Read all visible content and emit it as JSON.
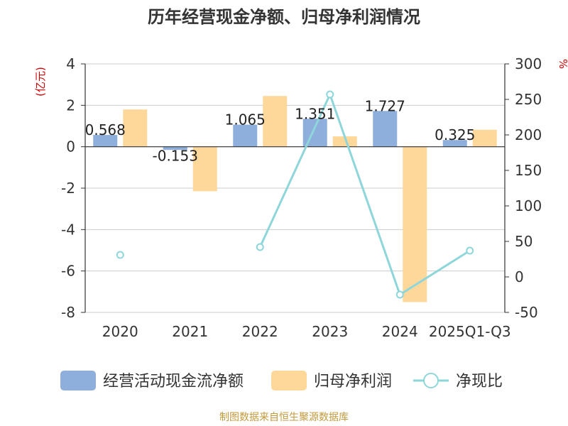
{
  "chart_data": {
    "type": "bar+line",
    "title": "历年经营现金净额、归母净利润情况",
    "left_axis_unit": "(亿元)",
    "right_axis_unit": "%",
    "categories": [
      "2020",
      "2021",
      "2022",
      "2023",
      "2024",
      "2025Q1-Q3"
    ],
    "left_ylim": [
      -8,
      4
    ],
    "left_ticks": [
      4,
      2,
      0,
      -2,
      -4,
      -6,
      -8
    ],
    "right_ylim": [
      -50,
      300
    ],
    "right_ticks": [
      300,
      250,
      200,
      150,
      100,
      50,
      0,
      -50
    ],
    "series": [
      {
        "name": "经营活动现金流净额",
        "type": "bar",
        "axis": "left",
        "color": "#8eaedb",
        "values": [
          0.568,
          -0.153,
          1.065,
          1.351,
          1.727,
          0.325
        ],
        "labels": [
          "0.568",
          "-0.153",
          "1.065",
          "1.351",
          "1.727",
          "0.325"
        ]
      },
      {
        "name": "归母净利润",
        "type": "bar",
        "axis": "left",
        "color": "#fdd89a",
        "values": [
          1.8,
          -2.15,
          2.45,
          0.5,
          -7.5,
          0.82
        ]
      },
      {
        "name": "净现比",
        "type": "line",
        "axis": "right",
        "color": "#8ed6d9",
        "values": [
          31,
          null,
          42,
          257,
          -25,
          37
        ]
      }
    ]
  },
  "legend": {
    "items": [
      {
        "label": "经营活动现金流净额",
        "kind": "bar",
        "color": "#8eaedb"
      },
      {
        "label": "归母净利润",
        "kind": "bar",
        "color": "#fdd89a"
      },
      {
        "label": "净现比",
        "kind": "line",
        "color": "#8ed6d9"
      }
    ]
  },
  "source": "制图数据来自恒生聚源数据库"
}
